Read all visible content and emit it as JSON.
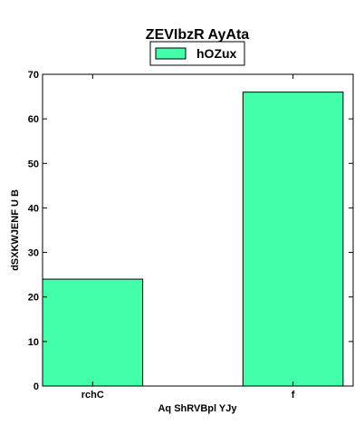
{
  "chart_data": {
    "type": "bar",
    "title": "ZEVIbzR AyAta",
    "xlabel": "Aq ShRVBpl YJy",
    "ylabel": "dSXKWJENF U  B",
    "categories": [
      "rchC",
      "f"
    ],
    "series": [
      {
        "name": "hOZux",
        "values": [
          24,
          66
        ],
        "color": "#44ffaa"
      }
    ],
    "ylim": [
      0,
      70
    ],
    "yticks": [
      0,
      10,
      20,
      30,
      40,
      50,
      60,
      70
    ],
    "grid": false,
    "legend": "top-center"
  }
}
